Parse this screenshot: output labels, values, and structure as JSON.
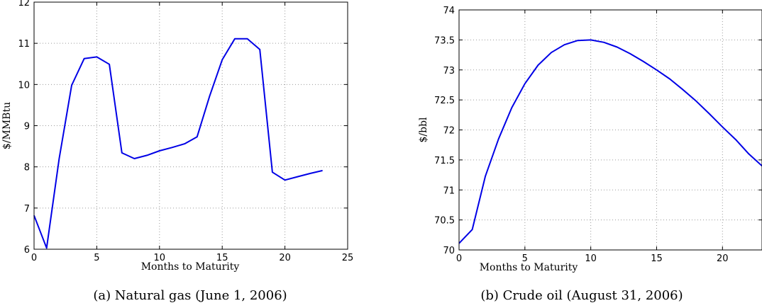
{
  "chart_data": [
    {
      "type": "line",
      "caption": "(a) Natural gas (June 1, 2006)",
      "xlabel": "Months to Maturity",
      "ylabel": "$/MMBtu",
      "xlim": [
        0,
        25
      ],
      "ylim": [
        6,
        12
      ],
      "xticks": [
        0,
        5,
        10,
        15,
        20,
        25
      ],
      "yticks": [
        6,
        7,
        8,
        9,
        10,
        11,
        12
      ],
      "grid": true,
      "series": [
        {
          "color": "#0000e6",
          "x": [
            0,
            1,
            2,
            3,
            4,
            5,
            6,
            7,
            8,
            9,
            10,
            11,
            12,
            13,
            14,
            15,
            16,
            17,
            18,
            19,
            20,
            21,
            22,
            23
          ],
          "y": [
            6.82,
            6.03,
            8.2,
            9.98,
            10.63,
            10.67,
            10.49,
            8.34,
            8.2,
            8.28,
            8.39,
            8.47,
            8.56,
            8.73,
            9.72,
            10.6,
            11.11,
            11.11,
            10.85,
            7.87,
            7.68,
            7.76,
            7.84,
            7.91
          ]
        }
      ]
    },
    {
      "type": "line",
      "caption": "(b) Crude oil (August 31, 2006)",
      "xlabel": "Months to Maturity",
      "ylabel": "$/bbl",
      "xlim": [
        0,
        23
      ],
      "ylim": [
        70,
        74
      ],
      "xticks": [
        0,
        5,
        10,
        15,
        20
      ],
      "yticks": [
        70,
        70.5,
        71,
        71.5,
        72,
        72.5,
        73,
        73.5,
        74
      ],
      "grid": true,
      "series": [
        {
          "color": "#0000e6",
          "x": [
            0,
            1,
            2,
            3,
            4,
            5,
            6,
            7,
            8,
            9,
            10,
            11,
            12,
            13,
            14,
            15,
            16,
            17,
            18,
            19,
            20,
            21,
            22,
            23
          ],
          "y": [
            70.11,
            70.34,
            71.23,
            71.85,
            72.37,
            72.77,
            73.08,
            73.29,
            73.42,
            73.49,
            73.5,
            73.46,
            73.38,
            73.27,
            73.14,
            73.0,
            72.85,
            72.67,
            72.48,
            72.27,
            72.05,
            71.84,
            71.6,
            71.4
          ]
        }
      ]
    }
  ]
}
